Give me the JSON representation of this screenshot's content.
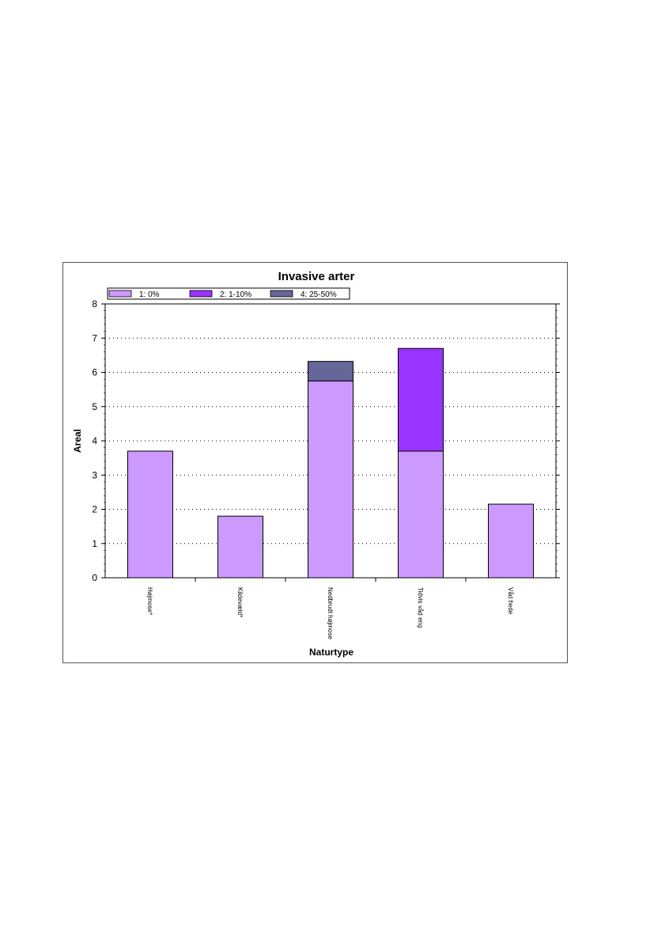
{
  "chart_data": {
    "type": "bar",
    "stacked": true,
    "title": "Invasive arter",
    "xlabel": "Naturtype",
    "ylabel": "Areal",
    "ylim": [
      0,
      8
    ],
    "yticks": [
      "0",
      "1",
      "2",
      "3",
      "4",
      "5",
      "6",
      "7",
      "8"
    ],
    "grid": true,
    "legend_position": "top-left",
    "categories": [
      "Højmose*",
      "Kildevæld*",
      "Nedbrudt højmose",
      "Tidvis våd eng",
      "Våd hede"
    ],
    "series": [
      {
        "name": "1: 0%",
        "color": "#cc99ff",
        "values": [
          3.7,
          1.8,
          5.75,
          3.7,
          2.15
        ]
      },
      {
        "name": "2: 1-10%",
        "color": "#9933ff",
        "values": [
          0,
          0,
          0,
          3.0,
          0
        ]
      },
      {
        "name": "4: 25-50%",
        "color": "#666699",
        "values": [
          0,
          0,
          0.57,
          0,
          0
        ]
      }
    ]
  }
}
